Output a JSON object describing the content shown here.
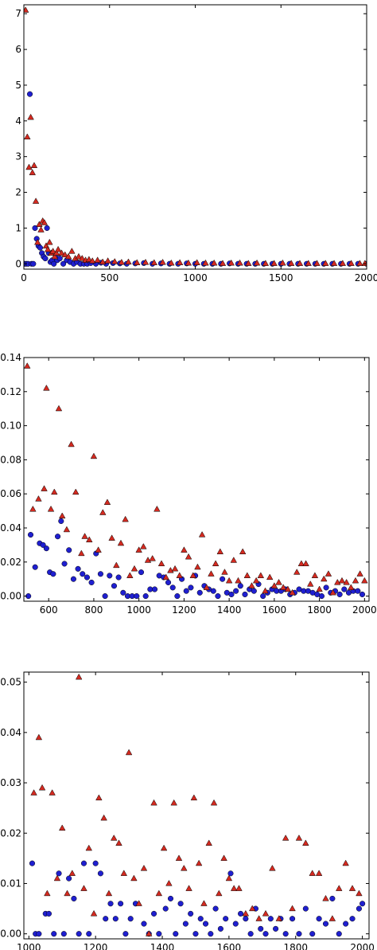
{
  "chart_data": [
    {
      "type": "scatter",
      "xlim": [
        0,
        2000
      ],
      "ylim": [
        -0.15,
        7.25
      ],
      "xticks": [
        0,
        500,
        1000,
        1500,
        2000
      ],
      "xtick_labels": [
        "0",
        "500",
        "1000",
        "1500",
        "2000"
      ],
      "yticks": [
        0,
        1,
        2,
        3,
        4,
        5,
        6,
        7
      ],
      "ytick_labels": [
        "0",
        "1",
        "2",
        "3",
        "4",
        "5",
        "6",
        "7"
      ],
      "grid": false,
      "series": [
        {
          "marker": "circle",
          "color": "#1f1fd0",
          "x": [
            5,
            15,
            25,
            35,
            45,
            55,
            65,
            75,
            85,
            95,
            105,
            115,
            125,
            135,
            145,
            155,
            165,
            175,
            185,
            195,
            210,
            230,
            250,
            270,
            290,
            310,
            330,
            350,
            370,
            390,
            420,
            450,
            480,
            520,
            560,
            600,
            650,
            700,
            750,
            800,
            850,
            900,
            950,
            1000,
            1050,
            1100,
            1150,
            1200,
            1250,
            1300,
            1350,
            1400,
            1450,
            1500,
            1550,
            1600,
            1650,
            1700,
            1750,
            1800,
            1850,
            1900,
            1950,
            2000
          ],
          "y": [
            0.0,
            0.0,
            0.0,
            4.75,
            0.0,
            0.0,
            1.0,
            0.7,
            0.5,
            0.45,
            0.3,
            0.2,
            0.15,
            1.0,
            0.3,
            0.05,
            0.1,
            0.0,
            0.2,
            0.1,
            0.15,
            0.0,
            0.1,
            0.05,
            0.0,
            0.05,
            0.0,
            0.0,
            0.0,
            0.02,
            0.0,
            0.03,
            0.0,
            0.02,
            0.01,
            0.0,
            0.01,
            0.02,
            0.0,
            0.01,
            0.0,
            0.0,
            0.01,
            0.0,
            0.0,
            0.0,
            0.0,
            0.01,
            0.0,
            0.0,
            0.0,
            0.0,
            0.0,
            0.0,
            0.0,
            0.0,
            0.0,
            0.0,
            0.0,
            0.0,
            0.0,
            0.0,
            0.0,
            0.0
          ]
        },
        {
          "marker": "triangle",
          "color": "#d42a20",
          "x": [
            10,
            20,
            30,
            40,
            50,
            60,
            70,
            80,
            90,
            100,
            110,
            120,
            130,
            140,
            150,
            160,
            170,
            180,
            190,
            200,
            220,
            240,
            260,
            280,
            300,
            320,
            340,
            360,
            380,
            400,
            430,
            460,
            490,
            530,
            570,
            610,
            660,
            710,
            760,
            810,
            860,
            910,
            960,
            1010,
            1060,
            1110,
            1160,
            1210,
            1260,
            1310,
            1360,
            1410,
            1460,
            1510,
            1560,
            1610,
            1660,
            1710,
            1760,
            1810,
            1860,
            1910,
            1960,
            1990
          ],
          "y": [
            7.1,
            3.55,
            2.7,
            4.1,
            2.55,
            2.75,
            1.75,
            0.6,
            1.1,
            0.95,
            1.2,
            1.15,
            0.5,
            0.4,
            0.6,
            0.3,
            0.35,
            0.2,
            0.3,
            0.4,
            0.3,
            0.25,
            0.2,
            0.35,
            0.15,
            0.2,
            0.15,
            0.1,
            0.12,
            0.08,
            0.1,
            0.05,
            0.08,
            0.06,
            0.04,
            0.05,
            0.03,
            0.04,
            0.03,
            0.04,
            0.02,
            0.03,
            0.02,
            0.03,
            0.02,
            0.02,
            0.01,
            0.02,
            0.02,
            0.01,
            0.02,
            0.01,
            0.01,
            0.02,
            0.01,
            0.01,
            0.01,
            0.01,
            0.01,
            0.01,
            0.01,
            0.01,
            0.01,
            0.01
          ]
        }
      ]
    },
    {
      "type": "scatter",
      "xlim": [
        490,
        2020
      ],
      "ylim": [
        -0.003,
        0.14
      ],
      "xticks": [
        600,
        800,
        1000,
        1200,
        1400,
        1600,
        1800,
        2000
      ],
      "xtick_labels": [
        "600",
        "800",
        "1000",
        "1200",
        "1400",
        "1600",
        "1800",
        "2000"
      ],
      "yticks": [
        0,
        0.02,
        0.04,
        0.06,
        0.08,
        0.1,
        0.12,
        0.14
      ],
      "ytick_labels": [
        "0.00",
        "0.02",
        "0.04",
        "0.06",
        "0.08",
        "0.10",
        "0.12",
        "0.14"
      ],
      "grid": false,
      "series": [
        {
          "marker": "circle",
          "color": "#1f1fd0",
          "x": [
            510,
            520,
            540,
            560,
            575,
            590,
            605,
            620,
            640,
            655,
            670,
            690,
            710,
            730,
            750,
            770,
            790,
            810,
            830,
            850,
            870,
            890,
            910,
            930,
            950,
            970,
            990,
            1010,
            1030,
            1050,
            1070,
            1090,
            1110,
            1130,
            1150,
            1170,
            1190,
            1210,
            1230,
            1250,
            1270,
            1290,
            1310,
            1330,
            1350,
            1370,
            1390,
            1410,
            1430,
            1450,
            1470,
            1490,
            1510,
            1530,
            1550,
            1570,
            1590,
            1610,
            1630,
            1650,
            1670,
            1690,
            1710,
            1730,
            1750,
            1770,
            1790,
            1810,
            1830,
            1850,
            1870,
            1890,
            1910,
            1930,
            1950,
            1970,
            1990
          ],
          "y": [
            0.0,
            0.036,
            0.017,
            0.031,
            0.03,
            0.028,
            0.014,
            0.013,
            0.035,
            0.044,
            0.019,
            0.027,
            0.01,
            0.016,
            0.013,
            0.011,
            0.008,
            0.025,
            0.013,
            0.0,
            0.012,
            0.006,
            0.011,
            0.002,
            0.0,
            0.0,
            0.0,
            0.014,
            0.0,
            0.004,
            0.004,
            0.012,
            0.011,
            0.008,
            0.005,
            0.0,
            0.01,
            0.003,
            0.005,
            0.012,
            0.002,
            0.006,
            0.004,
            0.003,
            0.0,
            0.01,
            0.002,
            0.001,
            0.003,
            0.006,
            0.001,
            0.004,
            0.003,
            0.007,
            0.0,
            0.002,
            0.004,
            0.003,
            0.003,
            0.004,
            0.001,
            0.002,
            0.004,
            0.003,
            0.003,
            0.002,
            0.001,
            0.0,
            0.005,
            0.002,
            0.003,
            0.001,
            0.004,
            0.002,
            0.003,
            0.003,
            0.001
          ]
        },
        {
          "marker": "triangle",
          "color": "#d42a20",
          "x": [
            505,
            530,
            555,
            580,
            590,
            610,
            625,
            645,
            660,
            680,
            700,
            720,
            745,
            760,
            780,
            800,
            820,
            840,
            860,
            880,
            900,
            920,
            940,
            960,
            980,
            1000,
            1020,
            1040,
            1060,
            1080,
            1100,
            1120,
            1140,
            1160,
            1180,
            1200,
            1220,
            1240,
            1260,
            1280,
            1300,
            1320,
            1340,
            1360,
            1380,
            1400,
            1420,
            1440,
            1460,
            1480,
            1500,
            1520,
            1540,
            1560,
            1580,
            1600,
            1620,
            1640,
            1660,
            1680,
            1700,
            1720,
            1740,
            1760,
            1780,
            1800,
            1820,
            1840,
            1860,
            1880,
            1900,
            1920,
            1940,
            1960,
            1980,
            2000
          ],
          "y": [
            0.135,
            0.051,
            0.057,
            0.063,
            0.122,
            0.051,
            0.061,
            0.11,
            0.047,
            0.039,
            0.089,
            0.061,
            0.025,
            0.035,
            0.033,
            0.082,
            0.027,
            0.049,
            0.055,
            0.034,
            0.018,
            0.031,
            0.045,
            0.012,
            0.016,
            0.027,
            0.029,
            0.021,
            0.022,
            0.051,
            0.019,
            0.011,
            0.015,
            0.016,
            0.012,
            0.027,
            0.023,
            0.012,
            0.017,
            0.036,
            0.005,
            0.013,
            0.019,
            0.026,
            0.014,
            0.009,
            0.021,
            0.009,
            0.026,
            0.012,
            0.006,
            0.009,
            0.012,
            0.003,
            0.011,
            0.006,
            0.008,
            0.005,
            0.004,
            0.002,
            0.014,
            0.019,
            0.019,
            0.007,
            0.012,
            0.004,
            0.01,
            0.013,
            0.002,
            0.008,
            0.009,
            0.008,
            0.005,
            0.009,
            0.013,
            0.009
          ]
        }
      ]
    },
    {
      "type": "scatter",
      "xlim": [
        985,
        2020
      ],
      "ylim": [
        -0.001,
        0.052
      ],
      "xticks": [
        1000,
        1200,
        1400,
        1600,
        1800,
        2000
      ],
      "xtick_labels": [
        "1000",
        "1200",
        "1400",
        "1600",
        "1800",
        "2000"
      ],
      "yticks": [
        0,
        0.01,
        0.02,
        0.03,
        0.04,
        0.05
      ],
      "ytick_labels": [
        "0.00",
        "0.01",
        "0.02",
        "0.03",
        "0.04",
        "0.05"
      ],
      "grid": false,
      "series": [
        {
          "marker": "circle",
          "color": "#1f1fd0",
          "x": [
            1010,
            1020,
            1030,
            1050,
            1060,
            1075,
            1090,
            1105,
            1120,
            1135,
            1150,
            1165,
            1180,
            1200,
            1215,
            1230,
            1245,
            1260,
            1275,
            1290,
            1305,
            1320,
            1345,
            1360,
            1375,
            1390,
            1410,
            1425,
            1440,
            1455,
            1470,
            1485,
            1500,
            1515,
            1530,
            1545,
            1560,
            1575,
            1590,
            1605,
            1620,
            1635,
            1650,
            1665,
            1680,
            1695,
            1710,
            1725,
            1740,
            1755,
            1770,
            1790,
            1810,
            1830,
            1850,
            1870,
            1890,
            1910,
            1930,
            1950,
            1970,
            1990,
            2000
          ],
          "y": [
            0.014,
            0.0,
            0.0,
            0.004,
            0.004,
            0.0,
            0.012,
            0.0,
            0.011,
            0.007,
            0.0,
            0.014,
            0.0,
            0.014,
            0.012,
            0.003,
            0.006,
            0.003,
            0.006,
            0.0,
            0.003,
            0.006,
            0.002,
            0.0,
            0.004,
            0.0,
            0.005,
            0.007,
            0.0,
            0.006,
            0.002,
            0.004,
            0.0,
            0.003,
            0.002,
            0.0,
            0.005,
            0.001,
            0.003,
            0.012,
            0.002,
            0.004,
            0.003,
            0.0,
            0.005,
            0.001,
            0.0,
            0.003,
            0.001,
            0.003,
            0.0,
            0.003,
            0.0,
            0.005,
            0.0,
            0.003,
            0.002,
            0.007,
            0.0,
            0.002,
            0.003,
            0.005,
            0.006
          ]
        },
        {
          "marker": "triangle",
          "color": "#d42a20",
          "x": [
            1015,
            1030,
            1040,
            1055,
            1070,
            1085,
            1100,
            1115,
            1130,
            1150,
            1165,
            1180,
            1195,
            1210,
            1225,
            1240,
            1255,
            1270,
            1285,
            1300,
            1315,
            1330,
            1345,
            1360,
            1375,
            1390,
            1405,
            1420,
            1435,
            1450,
            1465,
            1480,
            1495,
            1510,
            1525,
            1540,
            1555,
            1570,
            1585,
            1600,
            1615,
            1630,
            1650,
            1670,
            1690,
            1710,
            1730,
            1750,
            1770,
            1790,
            1810,
            1830,
            1850,
            1870,
            1890,
            1910,
            1930,
            1950,
            1970,
            1990
          ],
          "y": [
            0.028,
            0.039,
            0.029,
            0.008,
            0.028,
            0.011,
            0.021,
            0.008,
            0.012,
            0.051,
            0.009,
            0.017,
            0.004,
            0.027,
            0.023,
            0.008,
            0.019,
            0.018,
            0.012,
            0.036,
            0.011,
            0.006,
            0.013,
            0.0,
            0.026,
            0.008,
            0.017,
            0.01,
            0.026,
            0.015,
            0.013,
            0.009,
            0.027,
            0.014,
            0.006,
            0.018,
            0.026,
            0.008,
            0.015,
            0.011,
            0.009,
            0.009,
            0.004,
            0.005,
            0.003,
            0.004,
            0.013,
            0.003,
            0.019,
            0.005,
            0.019,
            0.018,
            0.012,
            0.012,
            0.007,
            0.003,
            0.009,
            0.014,
            0.009,
            0.008
          ]
        }
      ]
    }
  ]
}
